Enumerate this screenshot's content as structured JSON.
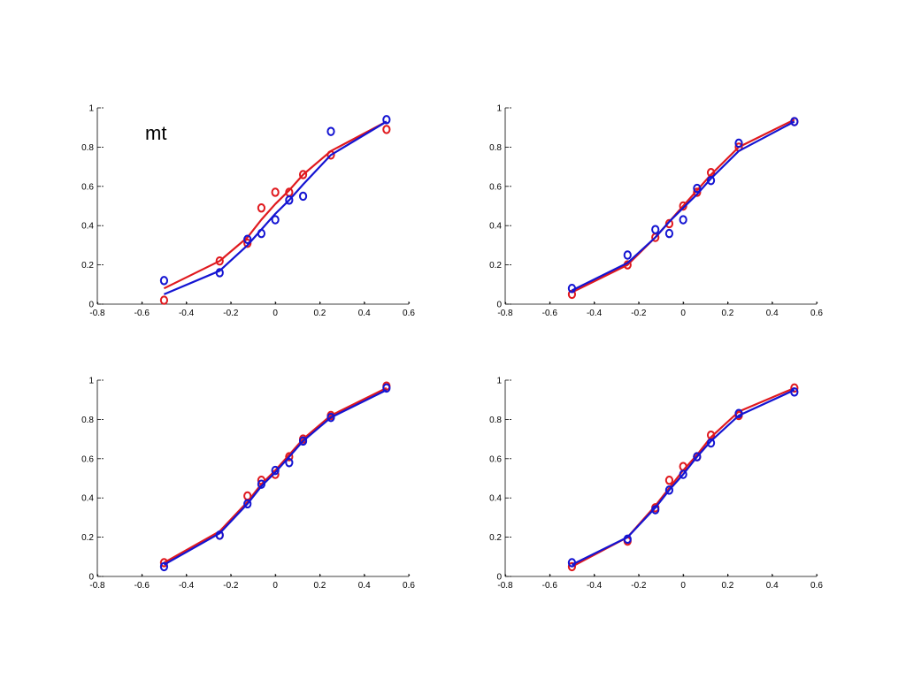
{
  "chart_data": [
    {
      "type": "line",
      "panel": "top-left",
      "annotation": "mt",
      "xlim": [
        -0.8,
        0.6
      ],
      "ylim": [
        0,
        1
      ],
      "xticks": [
        "-0.8",
        "-0.6",
        "-0.4",
        "-0.2",
        "0",
        "0.2",
        "0.4",
        "0.6"
      ],
      "yticks": [
        "0",
        "0.2",
        "0.4",
        "0.6",
        "0.8",
        "1"
      ],
      "grid": false,
      "series": [
        {
          "color": "#e0191e",
          "fit": {
            "x": [
              -0.5,
              -0.25,
              -0.125,
              -0.0625,
              0,
              0.0625,
              0.125,
              0.25,
              0.5
            ],
            "y": [
              0.08,
              0.22,
              0.34,
              0.43,
              0.51,
              0.58,
              0.66,
              0.78,
              0.93
            ]
          },
          "points": {
            "x": [
              -0.5,
              -0.25,
              -0.125,
              -0.0625,
              0,
              0.0625,
              0.125,
              0.25,
              0.5
            ],
            "y": [
              0.02,
              0.22,
              0.31,
              0.49,
              0.57,
              0.57,
              0.66,
              0.76,
              0.89
            ]
          }
        },
        {
          "color": "#1414d2",
          "fit": {
            "x": [
              -0.5,
              -0.25,
              -0.125,
              -0.0625,
              0,
              0.0625,
              0.125,
              0.25,
              0.5
            ],
            "y": [
              0.05,
              0.17,
              0.3,
              0.38,
              0.46,
              0.53,
              0.61,
              0.76,
              0.93
            ]
          },
          "points": {
            "x": [
              -0.5,
              -0.25,
              -0.125,
              -0.0625,
              0,
              0.0625,
              0.125,
              0.25,
              0.5
            ],
            "y": [
              0.12,
              0.16,
              0.33,
              0.36,
              0.43,
              0.53,
              0.55,
              0.88,
              0.94
            ]
          }
        }
      ]
    },
    {
      "type": "line",
      "panel": "top-right",
      "xlim": [
        -0.8,
        0.6
      ],
      "ylim": [
        0,
        1
      ],
      "xticks": [
        "-0.8",
        "-0.6",
        "-0.4",
        "-0.2",
        "0",
        "0.2",
        "0.4",
        "0.6"
      ],
      "yticks": [
        "0",
        "0.2",
        "0.4",
        "0.6",
        "0.8",
        "1"
      ],
      "grid": false,
      "series": [
        {
          "color": "#e0191e",
          "fit": {
            "x": [
              -0.5,
              -0.25,
              -0.125,
              -0.0625,
              0,
              0.0625,
              0.125,
              0.25,
              0.5
            ],
            "y": [
              0.06,
              0.2,
              0.34,
              0.42,
              0.5,
              0.58,
              0.66,
              0.8,
              0.94
            ]
          },
          "points": {
            "x": [
              -0.5,
              -0.25,
              -0.125,
              -0.0625,
              0,
              0.0625,
              0.125,
              0.25,
              0.5
            ],
            "y": [
              0.05,
              0.2,
              0.34,
              0.41,
              0.5,
              0.57,
              0.67,
              0.8,
              0.93
            ]
          }
        },
        {
          "color": "#1414d2",
          "fit": {
            "x": [
              -0.5,
              -0.25,
              -0.125,
              -0.0625,
              0,
              0.0625,
              0.125,
              0.25,
              0.5
            ],
            "y": [
              0.07,
              0.21,
              0.34,
              0.42,
              0.49,
              0.56,
              0.64,
              0.78,
              0.93
            ]
          },
          "points": {
            "x": [
              -0.5,
              -0.25,
              -0.125,
              -0.0625,
              0,
              0.0625,
              0.125,
              0.25,
              0.5
            ],
            "y": [
              0.08,
              0.25,
              0.38,
              0.36,
              0.43,
              0.59,
              0.63,
              0.82,
              0.93
            ]
          }
        }
      ]
    },
    {
      "type": "line",
      "panel": "bottom-left",
      "xlim": [
        -0.8,
        0.6
      ],
      "ylim": [
        0,
        1
      ],
      "xticks": [
        "-0.8",
        "-0.6",
        "-0.4",
        "-0.2",
        "0",
        "0.2",
        "0.4",
        "0.6"
      ],
      "yticks": [
        "0",
        "0.2",
        "0.4",
        "0.6",
        "0.8",
        "1"
      ],
      "grid": false,
      "series": [
        {
          "color": "#e0191e",
          "fit": {
            "x": [
              -0.5,
              -0.25,
              -0.125,
              -0.0625,
              0,
              0.0625,
              0.125,
              0.25,
              0.5
            ],
            "y": [
              0.07,
              0.23,
              0.38,
              0.47,
              0.54,
              0.62,
              0.7,
              0.82,
              0.96
            ]
          },
          "points": {
            "x": [
              -0.5,
              -0.25,
              -0.125,
              -0.0625,
              0,
              0.0625,
              0.125,
              0.25,
              0.5
            ],
            "y": [
              0.07,
              0.21,
              0.41,
              0.49,
              0.52,
              0.61,
              0.7,
              0.82,
              0.97
            ]
          }
        },
        {
          "color": "#1414d2",
          "fit": {
            "x": [
              -0.5,
              -0.25,
              -0.125,
              -0.0625,
              0,
              0.0625,
              0.125,
              0.25,
              0.5
            ],
            "y": [
              0.06,
              0.22,
              0.37,
              0.46,
              0.53,
              0.61,
              0.69,
              0.81,
              0.95
            ]
          },
          "points": {
            "x": [
              -0.5,
              -0.25,
              -0.125,
              -0.0625,
              0,
              0.0625,
              0.125,
              0.25,
              0.5
            ],
            "y": [
              0.05,
              0.21,
              0.37,
              0.47,
              0.54,
              0.58,
              0.69,
              0.81,
              0.96
            ]
          }
        }
      ]
    },
    {
      "type": "line",
      "panel": "bottom-right",
      "xlim": [
        -0.8,
        0.6
      ],
      "ylim": [
        0,
        1
      ],
      "xticks": [
        "-0.8",
        "-0.6",
        "-0.4",
        "-0.2",
        "0",
        "0.2",
        "0.4",
        "0.6"
      ],
      "yticks": [
        "0",
        "0.2",
        "0.4",
        "0.6",
        "0.8",
        "1"
      ],
      "grid": false,
      "series": [
        {
          "color": "#e0191e",
          "fit": {
            "x": [
              -0.5,
              -0.25,
              -0.125,
              -0.0625,
              0,
              0.0625,
              0.125,
              0.25,
              0.5
            ],
            "y": [
              0.05,
              0.2,
              0.36,
              0.45,
              0.54,
              0.62,
              0.71,
              0.84,
              0.96
            ]
          },
          "points": {
            "x": [
              -0.5,
              -0.25,
              -0.125,
              -0.0625,
              0,
              0.0625,
              0.125,
              0.25,
              0.5
            ],
            "y": [
              0.05,
              0.18,
              0.35,
              0.49,
              0.56,
              0.61,
              0.72,
              0.82,
              0.96
            ]
          }
        },
        {
          "color": "#1414d2",
          "fit": {
            "x": [
              -0.5,
              -0.25,
              -0.125,
              -0.0625,
              0,
              0.0625,
              0.125,
              0.25,
              0.5
            ],
            "y": [
              0.06,
              0.2,
              0.35,
              0.44,
              0.52,
              0.61,
              0.69,
              0.82,
              0.95
            ]
          },
          "points": {
            "x": [
              -0.5,
              -0.25,
              -0.125,
              -0.0625,
              0,
              0.0625,
              0.125,
              0.25,
              0.5
            ],
            "y": [
              0.07,
              0.19,
              0.34,
              0.44,
              0.52,
              0.61,
              0.68,
              0.83,
              0.94
            ]
          }
        }
      ]
    }
  ]
}
